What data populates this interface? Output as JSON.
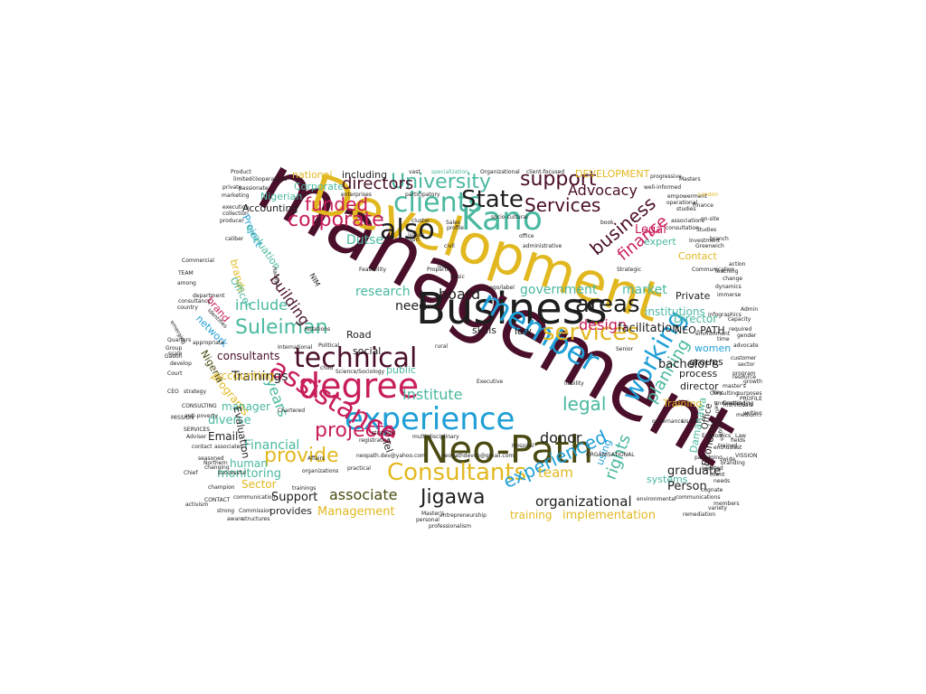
{
  "palette": {
    "gold": "#e2b820",
    "teal": "#4ab8a0",
    "blue": "#1f9fd6",
    "crimson": "#c81e5c",
    "maroon": "#4a0f2a",
    "olive": "#4a4a12",
    "dark": "#1e1e1e"
  },
  "words": [
    {
      "text": "management",
      "color": "maroon"
    },
    {
      "text": "Development",
      "color": "gold"
    },
    {
      "text": "Business",
      "color": "dark"
    },
    {
      "text": "Neo-Path",
      "color": "olive"
    },
    {
      "text": "degree",
      "color": "crimson"
    },
    {
      "text": "experience",
      "color": "blue"
    },
    {
      "text": "assistance",
      "color": "crimson"
    },
    {
      "text": "member",
      "color": "blue"
    },
    {
      "text": "Kano",
      "color": "teal"
    },
    {
      "text": "also",
      "color": "dark"
    },
    {
      "text": "clients",
      "color": "teal"
    },
    {
      "text": "technical",
      "color": "maroon"
    },
    {
      "text": "Consultants",
      "color": "gold"
    },
    {
      "text": "services",
      "color": "gold"
    },
    {
      "text": "areas",
      "color": "dark"
    },
    {
      "text": "working",
      "color": "blue"
    },
    {
      "text": "State",
      "color": "dark"
    },
    {
      "text": "corporate",
      "color": "crimson"
    },
    {
      "text": "University",
      "color": "teal"
    },
    {
      "text": "support",
      "color": "maroon"
    },
    {
      "text": "Services",
      "color": "maroon"
    },
    {
      "text": "funded",
      "color": "crimson"
    },
    {
      "text": "also",
      "color": "dark"
    },
    {
      "text": "Suleiman",
      "color": "teal"
    },
    {
      "text": "projects",
      "color": "crimson"
    },
    {
      "text": "provide",
      "color": "gold"
    },
    {
      "text": "Jigawa",
      "color": "dark"
    },
    {
      "text": "experienced",
      "color": "blue"
    },
    {
      "text": "legal",
      "color": "teal"
    },
    {
      "text": "business",
      "color": "maroon"
    },
    {
      "text": "planning",
      "color": "teal"
    },
    {
      "text": "rights",
      "color": "teal"
    },
    {
      "text": "finance",
      "color": "crimson"
    },
    {
      "text": "Advocacy",
      "color": "maroon"
    },
    {
      "text": "directors",
      "color": "maroon"
    },
    {
      "text": "board",
      "color": "dark"
    },
    {
      "text": "Institute",
      "color": "teal"
    },
    {
      "text": "years",
      "color": "teal"
    },
    {
      "text": "building",
      "color": "maroon"
    },
    {
      "text": "include",
      "color": "teal"
    },
    {
      "text": "research",
      "color": "teal"
    },
    {
      "text": "government",
      "color": "teal"
    },
    {
      "text": "market",
      "color": "teal"
    },
    {
      "text": "design",
      "color": "crimson"
    },
    {
      "text": "donor",
      "color": "dark"
    },
    {
      "text": "associate",
      "color": "olive"
    },
    {
      "text": "team",
      "color": "gold"
    },
    {
      "text": "organizational",
      "color": "dark"
    },
    {
      "text": "Support",
      "color": "dark"
    },
    {
      "text": "Management",
      "color": "gold"
    },
    {
      "text": "implementation",
      "color": "gold"
    },
    {
      "text": "training",
      "color": "gold"
    },
    {
      "text": "Person",
      "color": "dark"
    },
    {
      "text": "graduate",
      "color": "dark"
    },
    {
      "text": "bachelor's",
      "color": "dark"
    },
    {
      "text": "Trainings",
      "color": "dark"
    },
    {
      "text": "Financial",
      "color": "teal"
    },
    {
      "text": "diverse",
      "color": "teal"
    },
    {
      "text": "monitoring",
      "color": "teal"
    },
    {
      "text": "Sector",
      "color": "gold"
    },
    {
      "text": "human",
      "color": "teal"
    },
    {
      "text": "provides",
      "color": "dark"
    },
    {
      "text": "consultants",
      "color": "maroon"
    },
    {
      "text": "accounting",
      "color": "gold"
    },
    {
      "text": "network",
      "color": "blue"
    },
    {
      "text": "Email",
      "color": "dark"
    },
    {
      "text": "programs",
      "color": "gold"
    },
    {
      "text": "manager",
      "color": "teal"
    },
    {
      "text": "Evaluation",
      "color": "dark"
    },
    {
      "text": "Nigeria",
      "color": "olive"
    },
    {
      "text": "Dutse",
      "color": "teal"
    },
    {
      "text": "need",
      "color": "dark"
    },
    {
      "text": "facilitation",
      "color": "dark"
    },
    {
      "text": "Director",
      "color": "teal"
    },
    {
      "text": "NEO-PATH",
      "color": "dark"
    },
    {
      "text": "Private",
      "color": "dark"
    },
    {
      "text": "groups",
      "color": "dark"
    },
    {
      "text": "process",
      "color": "dark"
    },
    {
      "text": "director",
      "color": "dark"
    },
    {
      "text": "Training",
      "color": "gold"
    },
    {
      "text": "women",
      "color": "blue"
    },
    {
      "text": "Damanawa",
      "color": "teal"
    },
    {
      "text": "Economic",
      "color": "dark"
    },
    {
      "text": "Office",
      "color": "dark"
    },
    {
      "text": "institutions",
      "color": "teal"
    },
    {
      "text": "expert",
      "color": "teal"
    },
    {
      "text": "Contact",
      "color": "gold"
    },
    {
      "text": "Legal",
      "color": "crimson"
    },
    {
      "text": "DEVELOPMENT",
      "color": "gold"
    },
    {
      "text": "national",
      "color": "gold"
    },
    {
      "text": "including",
      "color": "dark"
    },
    {
      "text": "Corporate",
      "color": "teal"
    },
    {
      "text": "Nigerian",
      "color": "teal"
    },
    {
      "text": "Accounting",
      "color": "dark"
    },
    {
      "text": "Project",
      "color": "blue"
    },
    {
      "text": "evaluation",
      "color": "teal"
    },
    {
      "text": "brands",
      "color": "gold"
    },
    {
      "text": "Officer",
      "color": "teal"
    },
    {
      "text": "brand",
      "color": "crimson"
    },
    {
      "text": "Road",
      "color": "dark"
    },
    {
      "text": "social",
      "color": "dark"
    },
    {
      "text": "skills",
      "color": "dark"
    },
    {
      "text": "law",
      "color": "dark"
    },
    {
      "text": "public",
      "color": "teal"
    },
    {
      "text": "systems",
      "color": "teal"
    },
    {
      "text": "using",
      "color": "blue"
    },
    {
      "text": "Tel",
      "color": "dark"
    },
    {
      "text": "Investment",
      "color": "dark"
    },
    {
      "text": "Finance",
      "color": "dark"
    },
    {
      "text": "empowerment",
      "color": "dark"
    },
    {
      "text": "London",
      "color": "gold"
    },
    {
      "text": "Masters",
      "color": "dark"
    },
    {
      "text": "progressive",
      "color": "dark"
    },
    {
      "text": "well-informed",
      "color": "dark"
    },
    {
      "text": "client-focused",
      "color": "dark"
    },
    {
      "text": "Organizational",
      "color": "dark"
    },
    {
      "text": "specialization",
      "color": "teal"
    },
    {
      "text": "vast",
      "color": "dark"
    },
    {
      "text": "enterprises",
      "color": "dark"
    },
    {
      "text": "participatory",
      "color": "dark"
    },
    {
      "text": "socio-cultural",
      "color": "dark"
    },
    {
      "text": "cooperatives",
      "color": "dark"
    },
    {
      "text": "Product",
      "color": "dark"
    },
    {
      "text": "limited",
      "color": "dark"
    },
    {
      "text": "private",
      "color": "dark"
    },
    {
      "text": "passionate",
      "color": "dark"
    },
    {
      "text": "marketing",
      "color": "dark"
    },
    {
      "text": "execution",
      "color": "dark"
    },
    {
      "text": "collection",
      "color": "dark"
    },
    {
      "text": "producer",
      "color": "dark"
    },
    {
      "text": "caliber",
      "color": "dark"
    },
    {
      "text": "Commercial",
      "color": "dark"
    },
    {
      "text": "TEAM",
      "color": "dark"
    },
    {
      "text": "among",
      "color": "dark"
    },
    {
      "text": "department",
      "color": "dark"
    },
    {
      "text": "consultancy",
      "color": "dark"
    },
    {
      "text": "country",
      "color": "dark"
    },
    {
      "text": "appropriate",
      "color": "dark"
    },
    {
      "text": "Quarters",
      "color": "dark"
    },
    {
      "text": "develop",
      "color": "dark"
    },
    {
      "text": "Court",
      "color": "dark"
    },
    {
      "text": "CEO",
      "color": "dark"
    },
    {
      "text": "strategy",
      "color": "dark"
    },
    {
      "text": "MISSION",
      "color": "dark"
    },
    {
      "text": "SERVICES",
      "color": "dark"
    },
    {
      "text": "anti-poverty",
      "color": "dark"
    },
    {
      "text": "Adviser",
      "color": "dark"
    },
    {
      "text": "contact",
      "color": "dark"
    },
    {
      "text": "associates",
      "color": "dark"
    },
    {
      "text": "Northern",
      "color": "dark"
    },
    {
      "text": "Chief",
      "color": "dark"
    },
    {
      "text": "changing",
      "color": "dark"
    },
    {
      "text": "champion",
      "color": "dark"
    },
    {
      "text": "successful",
      "color": "dark"
    },
    {
      "text": "CONTACT",
      "color": "dark"
    },
    {
      "text": "strong",
      "color": "dark"
    },
    {
      "text": "Commission",
      "color": "dark"
    },
    {
      "text": "aware",
      "color": "dark"
    },
    {
      "text": "structures",
      "color": "dark"
    },
    {
      "text": "communication",
      "color": "dark"
    },
    {
      "text": "trainings",
      "color": "dark"
    },
    {
      "text": "organizations",
      "color": "dark"
    },
    {
      "text": "practical",
      "color": "dark"
    },
    {
      "text": "multi-disciplinary",
      "color": "dark"
    },
    {
      "text": "neopath.dev@yahoo.com",
      "color": "dark"
    },
    {
      "text": "neopathdevco@gmail.com",
      "color": "dark"
    },
    {
      "text": "personal",
      "color": "dark"
    },
    {
      "text": "professionalism",
      "color": "dark"
    },
    {
      "text": "entrepreneurship",
      "color": "dark"
    },
    {
      "text": "Master's",
      "color": "dark"
    },
    {
      "text": "ORGANISATIONAL",
      "color": "dark"
    },
    {
      "text": "environmental",
      "color": "dark"
    },
    {
      "text": "remediation",
      "color": "dark"
    },
    {
      "text": "variety",
      "color": "dark"
    },
    {
      "text": "communications",
      "color": "dark"
    },
    {
      "text": "cognate",
      "color": "dark"
    },
    {
      "text": "needs",
      "color": "dark"
    },
    {
      "text": "Located",
      "color": "dark"
    },
    {
      "text": "wide",
      "color": "dark"
    },
    {
      "text": "Economics",
      "color": "dark"
    },
    {
      "text": "Law",
      "color": "dark"
    },
    {
      "text": "trained",
      "color": "dark"
    },
    {
      "text": "governance",
      "color": "dark"
    },
    {
      "text": "Usman",
      "color": "dark"
    },
    {
      "text": "methodologies",
      "color": "dark"
    },
    {
      "text": "packaging",
      "color": "dark"
    },
    {
      "text": "client",
      "color": "dark"
    },
    {
      "text": "branding",
      "color": "dark"
    },
    {
      "text": "enthusiast",
      "color": "dark"
    },
    {
      "text": "fields",
      "color": "dark"
    },
    {
      "text": "writing",
      "color": "dark"
    },
    {
      "text": "understanding",
      "color": "dark"
    },
    {
      "text": "PROFILE",
      "color": "dark"
    },
    {
      "text": "Key",
      "color": "dark"
    },
    {
      "text": "customer",
      "color": "dark"
    },
    {
      "text": "program",
      "color": "dark"
    },
    {
      "text": "master's",
      "color": "dark"
    },
    {
      "text": "advocate",
      "color": "dark"
    },
    {
      "text": "environment",
      "color": "dark"
    },
    {
      "text": "infographics",
      "color": "dark"
    },
    {
      "text": "time",
      "color": "dark"
    },
    {
      "text": "capacity",
      "color": "dark"
    },
    {
      "text": "required",
      "color": "dark"
    },
    {
      "text": "Admin",
      "color": "dark"
    },
    {
      "text": "immerse",
      "color": "dark"
    },
    {
      "text": "dynamics",
      "color": "dark"
    },
    {
      "text": "Teaching",
      "color": "dark"
    },
    {
      "text": "change",
      "color": "dark"
    },
    {
      "text": "Greenwich",
      "color": "dark"
    },
    {
      "text": "Communication",
      "color": "dark"
    },
    {
      "text": "action",
      "color": "dark"
    },
    {
      "text": "on-site",
      "color": "dark"
    },
    {
      "text": "associations",
      "color": "dark"
    },
    {
      "text": "studies",
      "color": "dark"
    },
    {
      "text": "operational",
      "color": "dark"
    },
    {
      "text": "consultation",
      "color": "dark"
    },
    {
      "text": "Studies",
      "color": "dark"
    },
    {
      "text": "branch",
      "color": "dark"
    },
    {
      "text": "Creating",
      "color": "dark"
    },
    {
      "text": "Consulting",
      "color": "dark"
    },
    {
      "text": "Feasibility",
      "color": "dark"
    },
    {
      "text": "NIM",
      "color": "dark"
    },
    {
      "text": "Properties",
      "color": "dark"
    },
    {
      "text": "Basic",
      "color": "dark"
    },
    {
      "text": "Strategic",
      "color": "dark"
    },
    {
      "text": "Political",
      "color": "dark"
    },
    {
      "text": "International",
      "color": "dark"
    },
    {
      "text": "Rotations",
      "color": "dark"
    },
    {
      "text": "Science/Sociology",
      "color": "dark"
    },
    {
      "text": "child",
      "color": "dark"
    },
    {
      "text": "registration",
      "color": "dark"
    },
    {
      "text": "strategic",
      "color": "dark"
    },
    {
      "text": "Executive",
      "color": "dark"
    },
    {
      "text": "Hospital",
      "color": "dark"
    },
    {
      "text": "Data",
      "color": "dark"
    },
    {
      "text": "rural",
      "color": "dark"
    },
    {
      "text": "Senior",
      "color": "dark"
    },
    {
      "text": "liability",
      "color": "dark"
    },
    {
      "text": "administrative",
      "color": "dark"
    },
    {
      "text": "office",
      "color": "dark"
    },
    {
      "text": "book",
      "color": "dark"
    },
    {
      "text": "Logo/label",
      "color": "dark"
    },
    {
      "text": "Sales",
      "color": "dark"
    },
    {
      "text": "civil",
      "color": "dark"
    },
    {
      "text": "issues",
      "color": "dark"
    },
    {
      "text": "profile",
      "color": "dark"
    },
    {
      "text": "cluster",
      "color": "dark"
    },
    {
      "text": "girl",
      "color": "dark"
    },
    {
      "text": "Chartered",
      "color": "dark"
    },
    {
      "text": "Affairs",
      "color": "dark"
    },
    {
      "text": "Group",
      "color": "dark"
    },
    {
      "text": "CONSULTING",
      "color": "dark"
    },
    {
      "text": "activism",
      "color": "dark"
    },
    {
      "text": "seasoned",
      "color": "dark"
    },
    {
      "text": "gender",
      "color": "dark"
    },
    {
      "text": "sector",
      "color": "dark"
    },
    {
      "text": "growth",
      "color": "dark"
    },
    {
      "text": "individuals",
      "color": "dark"
    },
    {
      "text": "medium",
      "color": "dark"
    },
    {
      "text": "resource",
      "color": "dark"
    },
    {
      "text": "purposes",
      "color": "dark"
    },
    {
      "text": "VISSION",
      "color": "dark"
    },
    {
      "text": "members",
      "color": "dark"
    },
    {
      "text": "Hadejia",
      "color": "dark"
    },
    {
      "text": "Identifies",
      "color": "dark"
    },
    {
      "text": "emerging",
      "color": "dark"
    },
    {
      "text": "scale",
      "color": "dark"
    },
    {
      "text": "Gabon",
      "color": "dark"
    },
    {
      "text": "cooperatives",
      "color": "dark"
    },
    {
      "text": "Bachelor",
      "color": "dark"
    }
  ]
}
